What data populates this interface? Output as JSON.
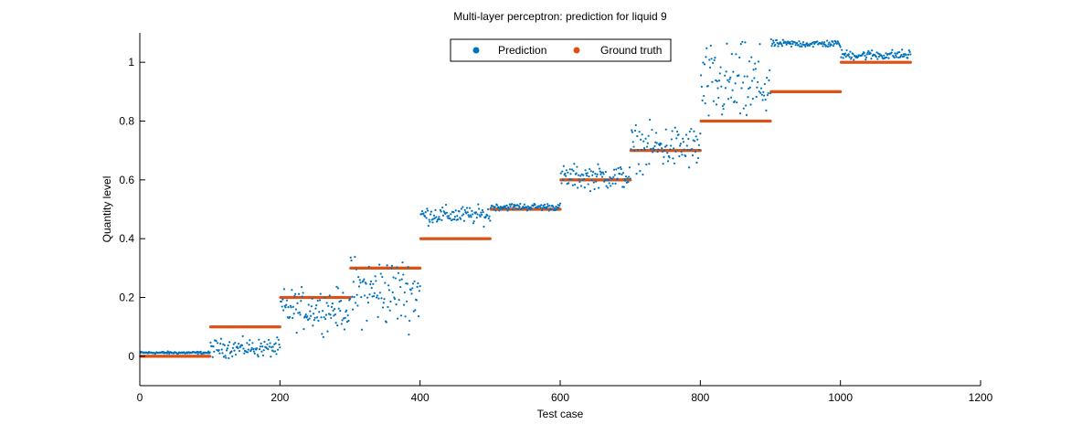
{
  "chart_data": {
    "type": "scatter",
    "title": "Multi-layer perceptron: prediction for liquid 9",
    "xlabel": "Test case",
    "ylabel": "Quantity level",
    "xlim": [
      0,
      1200
    ],
    "ylim": [
      -0.1,
      1.1
    ],
    "xticks": [
      0,
      200,
      400,
      600,
      800,
      1000,
      1200
    ],
    "yticks": [
      0,
      0.2,
      0.4,
      0.6,
      0.8,
      1
    ],
    "xtick_labels": [
      "0",
      "200",
      "400",
      "600",
      "800",
      "1000",
      "1200"
    ],
    "ytick_labels": [
      "0",
      "0.2",
      "0.4",
      "0.6",
      "0.8",
      "1"
    ],
    "grid": false,
    "legend_position": "top-center",
    "series": [
      {
        "name": "Prediction",
        "color": "#0072bd",
        "marker": "dot",
        "segments": [
          {
            "x_start": 1,
            "x_end": 100,
            "center": 0.012,
            "spread": 0.006
          },
          {
            "x_start": 101,
            "x_end": 200,
            "center": 0.028,
            "spread": 0.045
          },
          {
            "x_start": 201,
            "x_end": 300,
            "center": 0.16,
            "spread": 0.1
          },
          {
            "x_start": 301,
            "x_end": 400,
            "center": 0.22,
            "spread": 0.17
          },
          {
            "x_start": 401,
            "x_end": 500,
            "center": 0.48,
            "spread": 0.045
          },
          {
            "x_start": 501,
            "x_end": 600,
            "center": 0.508,
            "spread": 0.018
          },
          {
            "x_start": 601,
            "x_end": 700,
            "center": 0.61,
            "spread": 0.06
          },
          {
            "x_start": 701,
            "x_end": 800,
            "center": 0.71,
            "spread": 0.11
          },
          {
            "x_start": 801,
            "x_end": 900,
            "center": 0.92,
            "spread": 0.2
          },
          {
            "x_start": 901,
            "x_end": 1000,
            "center": 1.063,
            "spread": 0.018
          },
          {
            "x_start": 1001,
            "x_end": 1100,
            "center": 1.025,
            "spread": 0.025
          }
        ]
      },
      {
        "name": "Ground truth",
        "color": "#d95319",
        "marker": "dot",
        "segments": [
          {
            "x_start": 1,
            "x_end": 100,
            "value": 0.0
          },
          {
            "x_start": 101,
            "x_end": 200,
            "value": 0.1
          },
          {
            "x_start": 201,
            "x_end": 300,
            "value": 0.2
          },
          {
            "x_start": 301,
            "x_end": 400,
            "value": 0.3
          },
          {
            "x_start": 401,
            "x_end": 500,
            "value": 0.4
          },
          {
            "x_start": 501,
            "x_end": 600,
            "value": 0.5
          },
          {
            "x_start": 601,
            "x_end": 700,
            "value": 0.6
          },
          {
            "x_start": 701,
            "x_end": 800,
            "value": 0.7
          },
          {
            "x_start": 801,
            "x_end": 900,
            "value": 0.8
          },
          {
            "x_start": 901,
            "x_end": 1000,
            "value": 0.9
          },
          {
            "x_start": 1001,
            "x_end": 1100,
            "value": 1.0
          }
        ]
      }
    ]
  }
}
